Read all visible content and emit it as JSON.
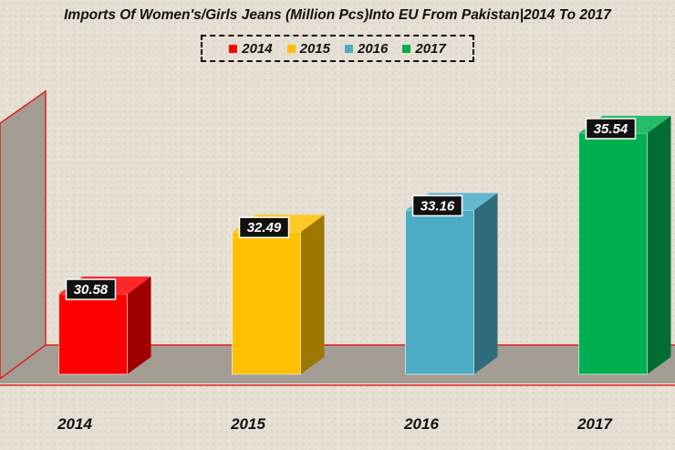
{
  "chart_data": {
    "type": "bar",
    "title": "Imports Of Women's/Girls Jeans (Million Pcs)Into EU From Pakistan|2014 To 2017",
    "categories": [
      "2014",
      "2015",
      "2016",
      "2017"
    ],
    "series": [
      {
        "name": "2014",
        "values": [
          30.58,
          null,
          null,
          null
        ]
      },
      {
        "name": "2015",
        "values": [
          null,
          32.49,
          null,
          null
        ]
      },
      {
        "name": "2016",
        "values": [
          null,
          null,
          33.16,
          null
        ]
      },
      {
        "name": "2017",
        "values": [
          null,
          null,
          null,
          35.54
        ]
      }
    ],
    "values": [
      30.58,
      32.49,
      33.16,
      35.54
    ],
    "data_labels": [
      "30.58",
      "32.49",
      "33.16",
      "35.54"
    ],
    "colors": [
      "#ff0000",
      "#ffc000",
      "#4bacc6",
      "#00b050"
    ],
    "legend": {
      "position": "top",
      "entries": [
        "2014",
        "2015",
        "2016",
        "2017"
      ]
    },
    "xlabel": "",
    "ylabel": "",
    "grid": false,
    "style": "3d-column"
  }
}
